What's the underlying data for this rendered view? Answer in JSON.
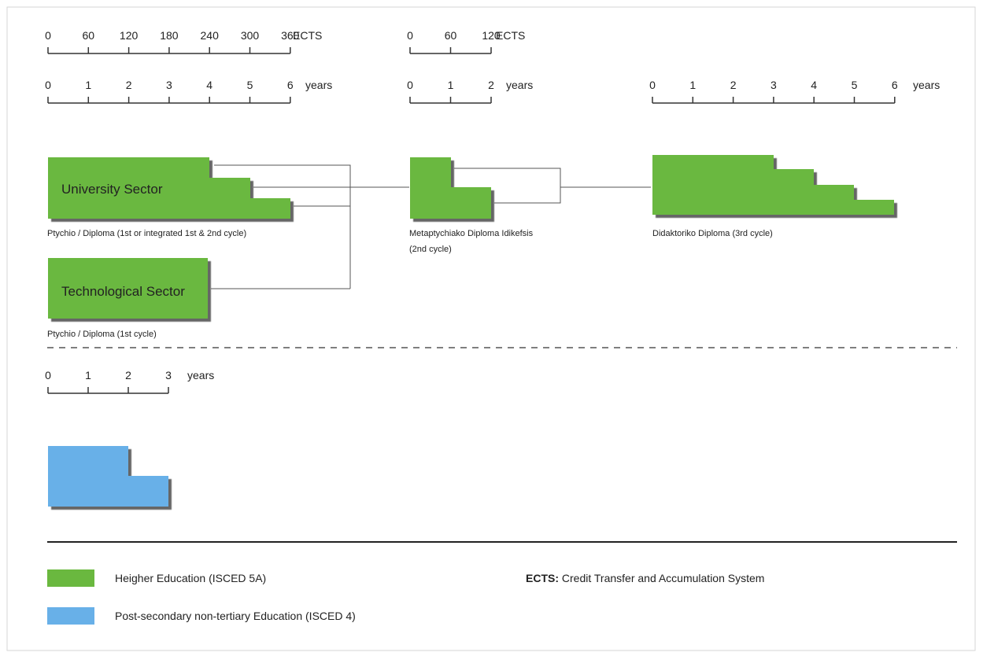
{
  "colors": {
    "higher_education": "#6ab83f",
    "post_secondary": "#68b0e8",
    "shadow": "#555555"
  },
  "scales": {
    "ects_1": {
      "ticks": [
        "0",
        "60",
        "120",
        "180",
        "240",
        "300",
        "360"
      ],
      "unit": "ECTS"
    },
    "years_1": {
      "ticks": [
        "0",
        "1",
        "2",
        "3",
        "4",
        "5",
        "6"
      ],
      "unit": "years"
    },
    "ects_2": {
      "ticks": [
        "0",
        "60",
        "120"
      ],
      "unit": "ECTS"
    },
    "years_2": {
      "ticks": [
        "0",
        "1",
        "2"
      ],
      "unit": "years"
    },
    "years_3": {
      "ticks": [
        "0",
        "1",
        "2",
        "3",
        "4",
        "5",
        "6"
      ],
      "unit": "years"
    },
    "years_4": {
      "ticks": [
        "0",
        "1",
        "2",
        "3"
      ],
      "unit": "years"
    }
  },
  "programmes": {
    "university": {
      "sector_label": "University Sector",
      "caption": "Ptychio / Diploma (1st or integrated 1st & 2nd cycle)",
      "durations_years": [
        4,
        5,
        6
      ]
    },
    "technological": {
      "sector_label": "Technological Sector",
      "caption": "Ptychio / Diploma (1st cycle)",
      "durations_years": [
        4
      ]
    },
    "master": {
      "caption_line1": "Metaptychiako Diploma Idikefsis",
      "caption_line2": "(2nd cycle)",
      "durations_years": [
        1,
        2
      ]
    },
    "doctorate": {
      "caption": "Didaktoriko Diploma (3rd cycle)",
      "durations_years": [
        3,
        4,
        5,
        6
      ]
    },
    "post_secondary": {
      "durations_years": [
        2,
        3
      ]
    }
  },
  "legend": {
    "higher_education": "Heigher Education (ISCED 5A)",
    "post_secondary": "Post-secondary non-tertiary Education (ISCED 4)",
    "ects_abbr": "ECTS:",
    "ects_definition": "Credit Transfer and Accumulation System"
  }
}
